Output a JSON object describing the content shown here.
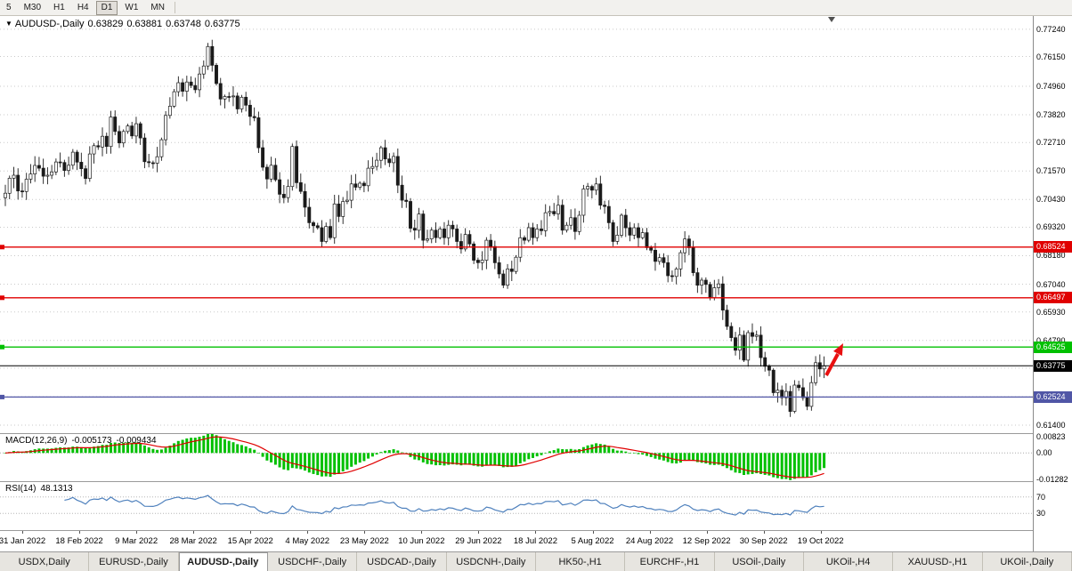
{
  "toolbar": {
    "periods": [
      {
        "label": "5",
        "active": false
      },
      {
        "label": "M30",
        "active": false
      },
      {
        "label": "H1",
        "active": false
      },
      {
        "label": "H4",
        "active": false
      },
      {
        "label": "D1",
        "active": true
      },
      {
        "label": "W1",
        "active": false
      },
      {
        "label": "MN",
        "active": false
      }
    ]
  },
  "chart": {
    "title": {
      "marker": "▼",
      "symbol": "AUDUSD-,Daily",
      "open": "0.63829",
      "high": "0.63881",
      "low": "0.63748",
      "close": "0.63775"
    },
    "y_axis": {
      "p_top": 0.7777,
      "p_bottom": 0.6108,
      "ticks": [
        "0.77240",
        "0.76150",
        "0.74960",
        "0.73820",
        "0.72710",
        "0.71570",
        "0.70430",
        "0.69320",
        "0.68180",
        "0.67040",
        "0.65930",
        "0.64790",
        "0.63680",
        "0.62540",
        "0.61400"
      ]
    },
    "x_axis": {
      "dates": [
        "31 Jan 2022",
        "18 Feb 2022",
        "9 Mar 2022",
        "28 Mar 2022",
        "15 Apr 2022",
        "4 May 2022",
        "23 May 2022",
        "10 Jun 2022",
        "29 Jun 2022",
        "18 Jul 2022",
        "5 Aug 2022",
        "24 Aug 2022",
        "12 Sep 2022",
        "30 Sep 2022",
        "19 Oct 2022"
      ]
    },
    "levels": [
      {
        "price": 0.68524,
        "label": "0.68524",
        "color": "#e00000"
      },
      {
        "price": 0.66497,
        "label": "0.66497",
        "color": "#e00000"
      },
      {
        "price": 0.64525,
        "label": "0.64525",
        "color": "#00c000"
      },
      {
        "price": 0.62524,
        "label": "0.62524",
        "color": "#5056a6"
      }
    ],
    "current_price": {
      "value": 0.63775,
      "label": "0.63775",
      "color": "#000000"
    },
    "annotations": {
      "arrow_color": "#e81010"
    }
  },
  "macd": {
    "name": "MACD(12,26,9)",
    "value_main": "-0.005173",
    "value_signal": "-0.009434",
    "hist_color": "#00c000",
    "signal_color": "#e00000",
    "axis": [
      {
        "v": 0.00823,
        "label": "0.00823"
      },
      {
        "v": 0.0,
        "label": "0.00"
      },
      {
        "v": -0.01282,
        "label": "-0.01282"
      }
    ]
  },
  "rsi": {
    "name": "RSI(14)",
    "value": "48.1313",
    "line_color": "#4f81bd",
    "levels": [
      {
        "v": 70,
        "label": "70"
      },
      {
        "v": 30,
        "label": "30"
      }
    ]
  },
  "tabs": [
    {
      "label": "USDX,Daily",
      "active": false
    },
    {
      "label": "EURUSD-,Daily",
      "active": false
    },
    {
      "label": "AUDUSD-,Daily",
      "active": true
    },
    {
      "label": "USDCHF-,Daily",
      "active": false
    },
    {
      "label": "USDCAD-,Daily",
      "active": false
    },
    {
      "label": "USDCNH-,Daily",
      "active": false
    },
    {
      "label": "HK50-,H1",
      "active": false
    },
    {
      "label": "EURCHF-,H1",
      "active": false
    },
    {
      "label": "USOil-,Daily",
      "active": false
    },
    {
      "label": "UKOil-,H4",
      "active": false
    },
    {
      "label": "XAUUSD-,H1",
      "active": false
    },
    {
      "label": "UKOil-,Daily",
      "active": false
    }
  ],
  "chart_data": {
    "type": "candlestick",
    "symbol": "AUDUSD",
    "timeframe": "Daily",
    "y_range": [
      0.6108,
      0.7777
    ],
    "last_ohlc": {
      "open": 0.63829,
      "high": 0.63881,
      "low": 0.63748,
      "close": 0.63775
    },
    "closes": [
      0.7068,
      0.7128,
      0.714,
      0.7077,
      0.7075,
      0.7124,
      0.7145,
      0.7179,
      0.7168,
      0.7136,
      0.714,
      0.7153,
      0.7193,
      0.7191,
      0.7159,
      0.718,
      0.7232,
      0.7192,
      0.7166,
      0.7127,
      0.7225,
      0.7258,
      0.7253,
      0.7296,
      0.7255,
      0.7373,
      0.7315,
      0.7269,
      0.7315,
      0.7337,
      0.7297,
      0.7346,
      0.7289,
      0.7194,
      0.719,
      0.7188,
      0.7214,
      0.7282,
      0.7379,
      0.7416,
      0.7474,
      0.751,
      0.7476,
      0.7513,
      0.7499,
      0.7482,
      0.7545,
      0.7577,
      0.7655,
      0.758,
      0.7507,
      0.7445,
      0.7455,
      0.7454,
      0.7457,
      0.7405,
      0.7452,
      0.742,
      0.7375,
      0.737,
      0.725,
      0.7172,
      0.7125,
      0.718,
      0.7122,
      0.7064,
      0.705,
      0.7095,
      0.7255,
      0.711,
      0.7075,
      0.7012,
      0.695,
      0.6938,
      0.693,
      0.6875,
      0.6935,
      0.689,
      0.7025,
      0.6975,
      0.7035,
      0.704,
      0.7105,
      0.7092,
      0.7108,
      0.7098,
      0.7168,
      0.7175,
      0.72,
      0.725,
      0.7205,
      0.719,
      0.7215,
      0.71,
      0.704,
      0.7035,
      0.6928,
      0.692,
      0.6985,
      0.688,
      0.6885,
      0.692,
      0.689,
      0.6925,
      0.689,
      0.694,
      0.6925,
      0.6875,
      0.6845,
      0.6903,
      0.6865,
      0.68,
      0.679,
      0.68,
      0.688,
      0.6855,
      0.679,
      0.6745,
      0.67,
      0.6765,
      0.6755,
      0.6812,
      0.689,
      0.688,
      0.693,
      0.689,
      0.6925,
      0.6918,
      0.699,
      0.6995,
      0.6985,
      0.702,
      0.692,
      0.694,
      0.697,
      0.6915,
      0.698,
      0.7085,
      0.7095,
      0.708,
      0.7105,
      0.702,
      0.7015,
      0.695,
      0.6875,
      0.69,
      0.698,
      0.693,
      0.69,
      0.693,
      0.689,
      0.691,
      0.685,
      0.684,
      0.6795,
      0.681,
      0.679,
      0.6738,
      0.6735,
      0.6765,
      0.683,
      0.6885,
      0.685,
      0.675,
      0.67,
      0.672,
      0.6703,
      0.665,
      0.669,
      0.6705,
      0.66,
      0.6535,
      0.649,
      0.644,
      0.65,
      0.64,
      0.651,
      0.6495,
      0.65,
      0.641,
      0.6375,
      0.636,
      0.627,
      0.628,
      0.625,
      0.6275,
      0.6195,
      0.63,
      0.629,
      0.625,
      0.6215,
      0.631,
      0.639,
      0.6365,
      0.63775
    ]
  }
}
